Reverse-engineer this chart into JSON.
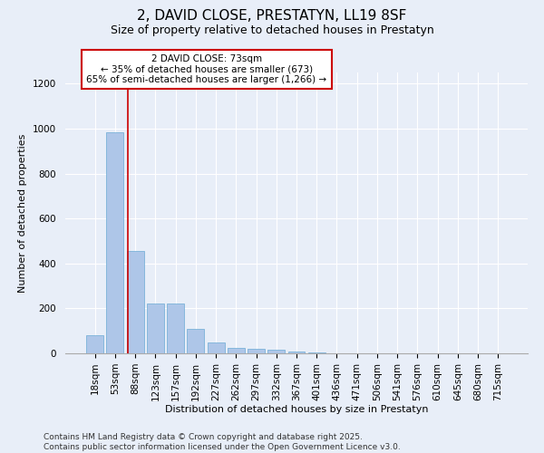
{
  "title1": "2, DAVID CLOSE, PRESTATYN, LL19 8SF",
  "title2": "Size of property relative to detached houses in Prestatyn",
  "xlabel": "Distribution of detached houses by size in Prestatyn",
  "ylabel": "Number of detached properties",
  "categories": [
    "18sqm",
    "53sqm",
    "88sqm",
    "123sqm",
    "157sqm",
    "192sqm",
    "227sqm",
    "262sqm",
    "297sqm",
    "332sqm",
    "367sqm",
    "401sqm",
    "436sqm",
    "471sqm",
    "506sqm",
    "541sqm",
    "576sqm",
    "610sqm",
    "645sqm",
    "680sqm",
    "715sqm"
  ],
  "values": [
    80,
    985,
    455,
    220,
    220,
    110,
    50,
    25,
    20,
    15,
    8,
    4,
    0,
    0,
    0,
    0,
    0,
    0,
    0,
    0,
    0
  ],
  "bar_color": "#aec6e8",
  "bar_edge_color": "#6aaad4",
  "vline_x": 1.65,
  "vline_color": "#cc0000",
  "annotation_text": "2 DAVID CLOSE: 73sqm\n← 35% of detached houses are smaller (673)\n65% of semi-detached houses are larger (1,266) →",
  "annotation_box_color": "white",
  "annotation_box_edge_color": "#cc0000",
  "ylim": [
    0,
    1250
  ],
  "yticks": [
    0,
    200,
    400,
    600,
    800,
    1000,
    1200
  ],
  "background_color": "#e8eef8",
  "plot_background": "#e8eef8",
  "footer_text": "Contains HM Land Registry data © Crown copyright and database right 2025.\nContains public sector information licensed under the Open Government Licence v3.0.",
  "title1_fontsize": 11,
  "title2_fontsize": 9,
  "xlabel_fontsize": 8,
  "ylabel_fontsize": 8,
  "annotation_fontsize": 7.5,
  "footer_fontsize": 6.5,
  "tick_fontsize": 7.5,
  "grid_color": "#ffffff"
}
